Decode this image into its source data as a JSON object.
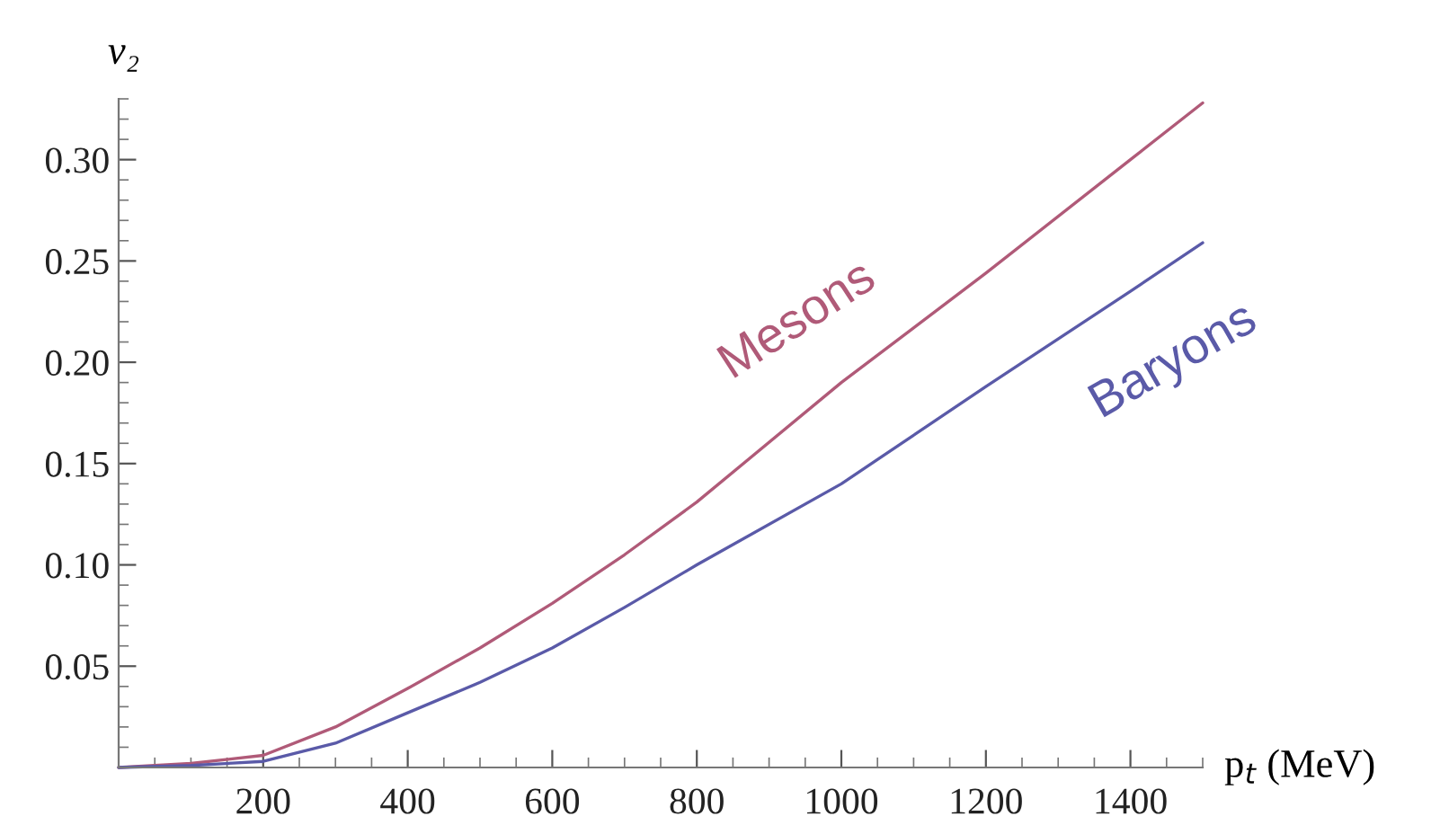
{
  "chart_data": {
    "type": "line",
    "xlabel": "p$_{t}$ (MeV)",
    "ylabel": "v₂",
    "x": [
      0,
      100,
      200,
      300,
      400,
      500,
      600,
      700,
      800,
      1000,
      1200,
      1400,
      1500
    ],
    "series": [
      {
        "name": "Mesons",
        "color": "#b05a78",
        "values": [
          0,
          0.002,
          0.006,
          0.02,
          0.039,
          0.059,
          0.081,
          0.105,
          0.131,
          0.19,
          0.244,
          0.3,
          0.328
        ]
      },
      {
        "name": "Baryons",
        "color": "#5a5aa8",
        "values": [
          0,
          0.001,
          0.003,
          0.012,
          0.027,
          0.042,
          0.059,
          0.079,
          0.1,
          0.14,
          0.188,
          0.235,
          0.259
        ]
      }
    ],
    "xlim": [
      0,
      1500
    ],
    "ylim": [
      0,
      0.33
    ],
    "xticks": [
      200,
      400,
      600,
      800,
      1000,
      1200,
      1400
    ],
    "yticks": [
      {
        "value": 0.05,
        "label": "0.05"
      },
      {
        "value": 0.1,
        "label": "0.10"
      },
      {
        "value": 0.15,
        "label": "0.15"
      },
      {
        "value": 0.2,
        "label": "0.20"
      },
      {
        "value": 0.25,
        "label": "0.25"
      },
      {
        "value": 0.3,
        "label": "0.30"
      }
    ],
    "grid": false,
    "legend": false
  }
}
